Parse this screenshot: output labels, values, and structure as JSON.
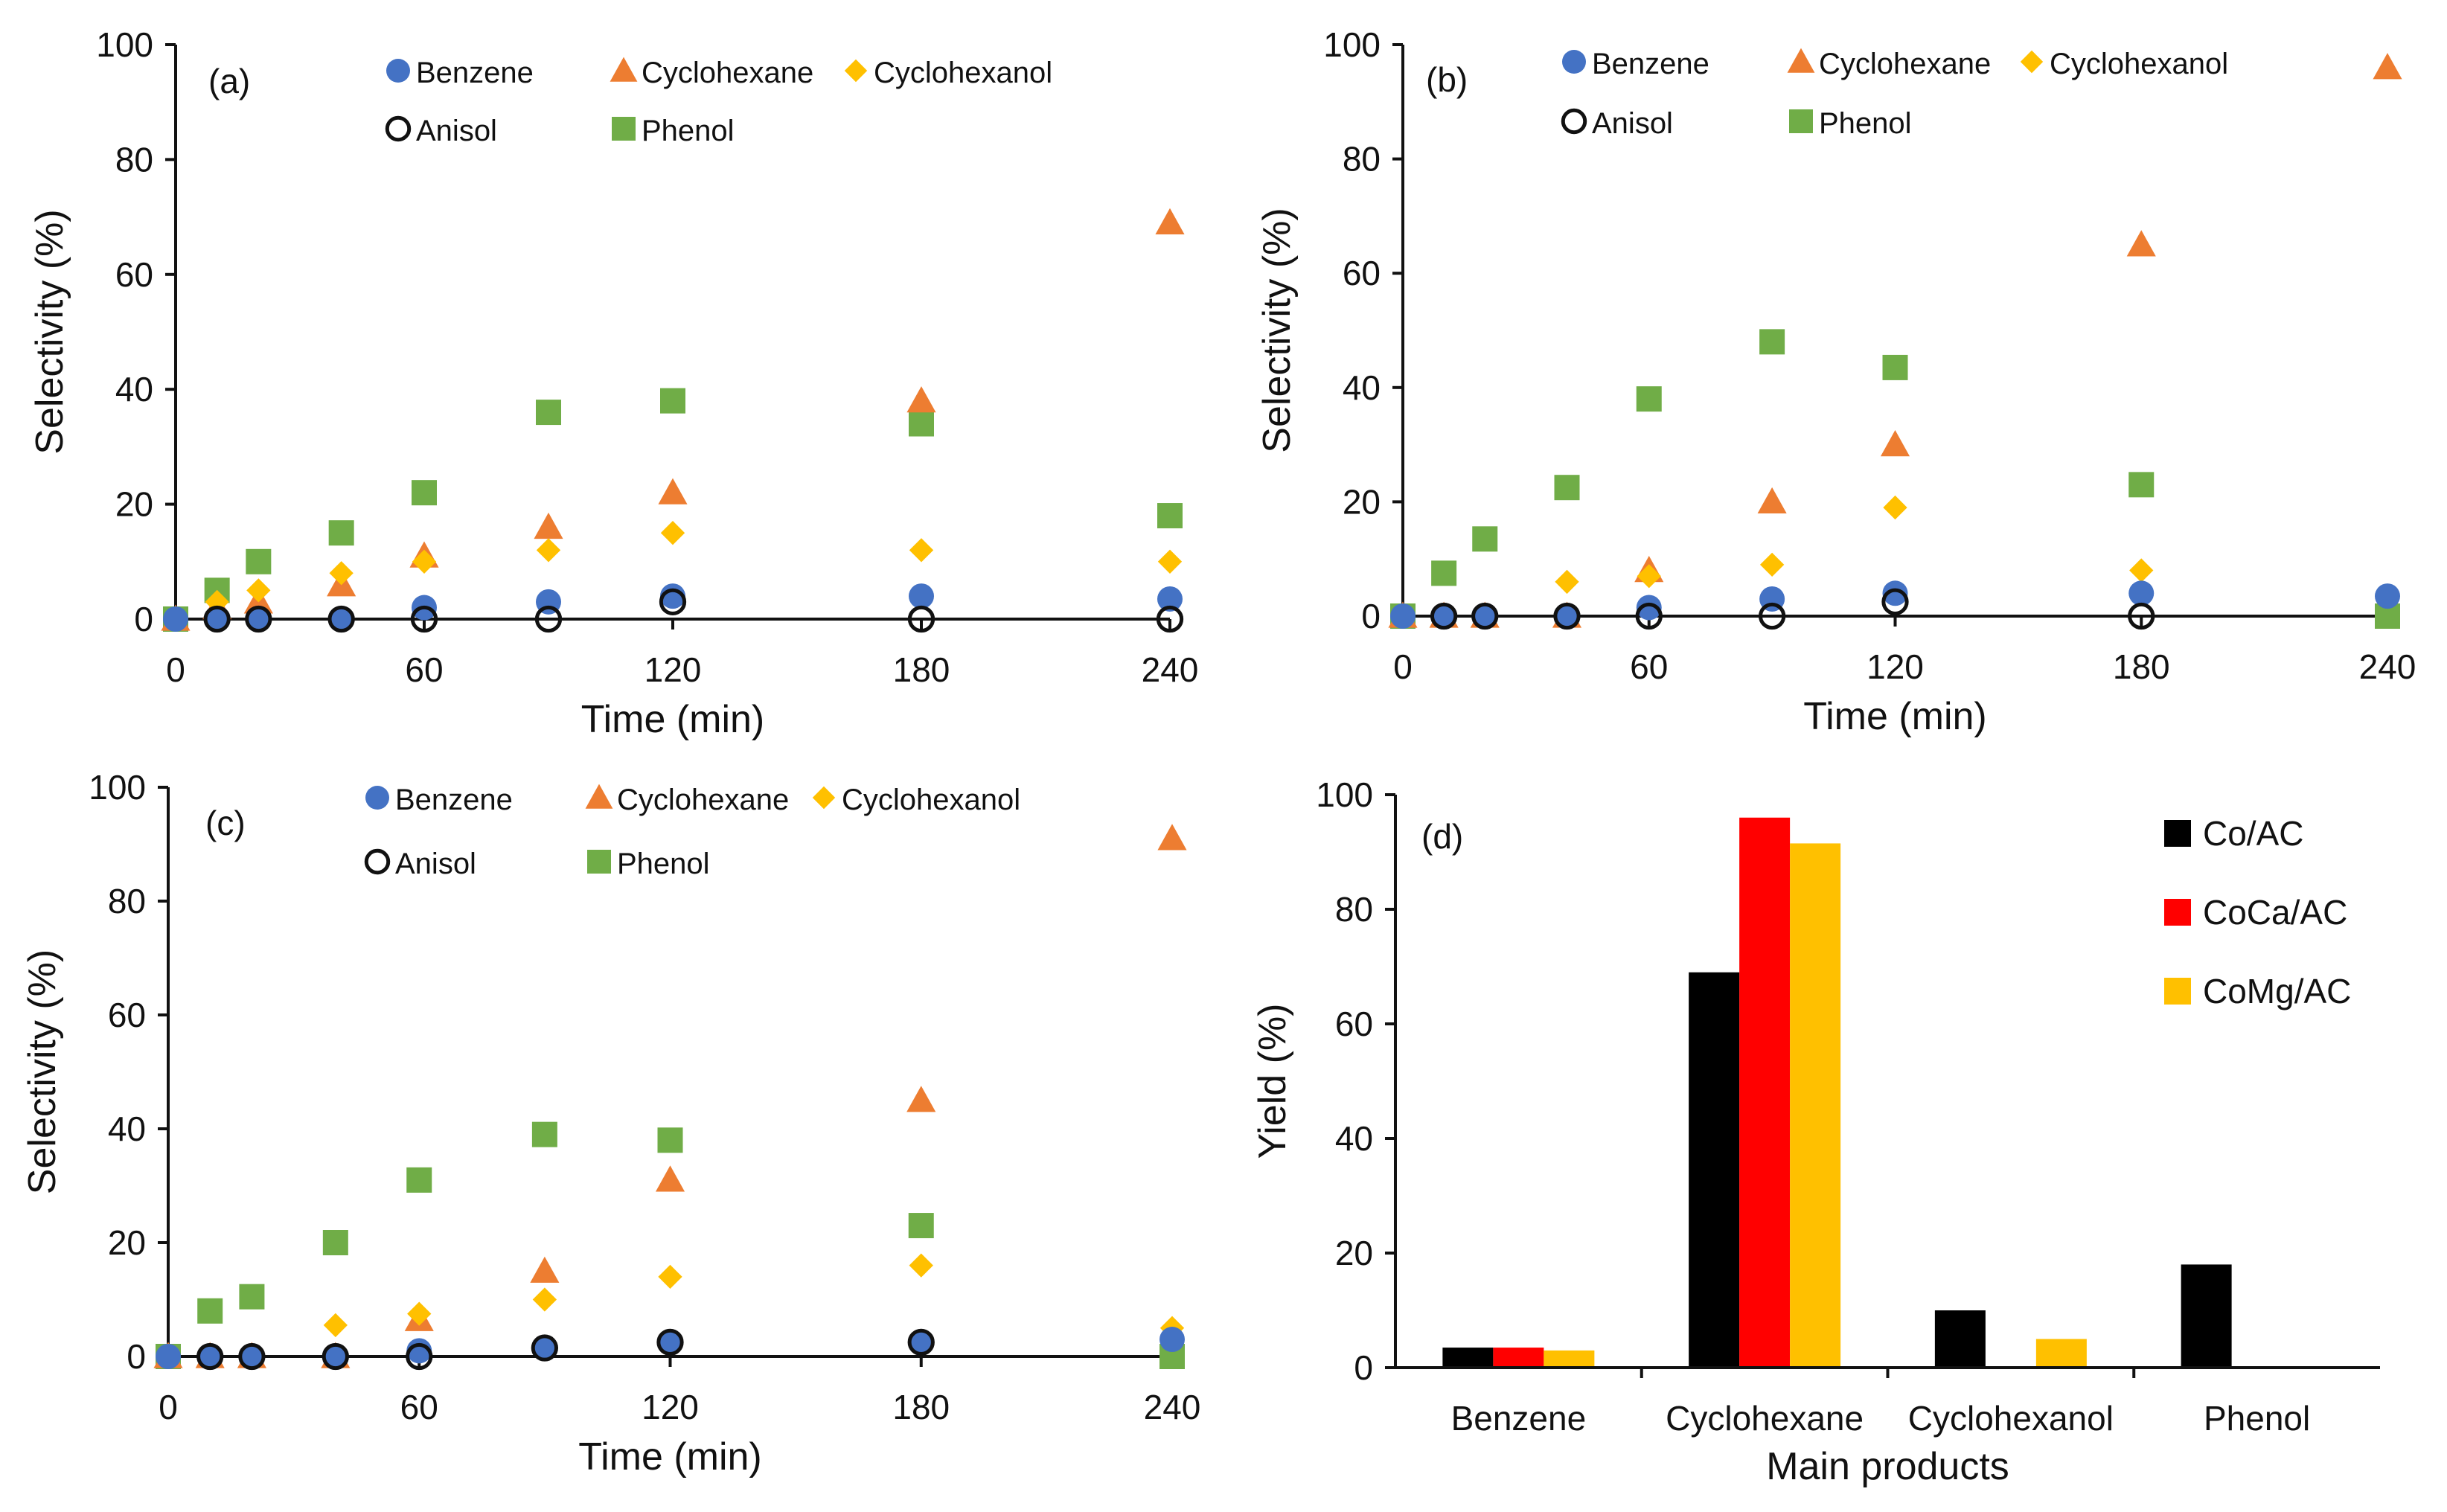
{
  "colors": {
    "benzene": "#4472C4",
    "cyclohexane": "#ED7D31",
    "cyclohexanol": "#FFC000",
    "phenol": "#70AD47",
    "anisol_stroke": "#111111",
    "co_ac": "#000000",
    "coca_ac": "#FF0000",
    "comg_ac": "#FFC000"
  },
  "chart_data": [
    {
      "panel": "(a)",
      "type": "scatter",
      "xlabel": "Time (min)",
      "ylabel": "Selectivity (%)",
      "xlim": [
        0,
        240
      ],
      "ylim": [
        0,
        100
      ],
      "xticks": [
        0,
        60,
        120,
        180,
        240
      ],
      "yticks": [
        0,
        20,
        40,
        60,
        80,
        100
      ],
      "legend_rows": [
        [
          "Benzene",
          "Cyclohexane",
          "Cyclohexanol"
        ],
        [
          "Anisol",
          "Phenol"
        ]
      ],
      "series": [
        {
          "name": "Phenol",
          "marker": "square",
          "x": [
            0,
            10,
            20,
            40,
            60,
            90,
            120,
            180,
            240
          ],
          "y": [
            0,
            5,
            10,
            15,
            22,
            36,
            38,
            34,
            18
          ]
        },
        {
          "name": "Cyclohexane",
          "marker": "triangle",
          "x": [
            0,
            10,
            20,
            40,
            60,
            90,
            120,
            180,
            240
          ],
          "y": [
            0,
            2,
            3,
            6,
            11,
            16,
            22,
            38,
            69
          ]
        },
        {
          "name": "Cyclohexanol",
          "marker": "diamond",
          "x": [
            0,
            10,
            20,
            40,
            60,
            90,
            120,
            180,
            240
          ],
          "y": [
            0,
            3,
            5,
            8,
            10,
            12,
            15,
            12,
            10
          ]
        },
        {
          "name": "Benzene",
          "marker": "circle",
          "x": [
            0,
            10,
            20,
            40,
            60,
            90,
            120,
            180,
            240
          ],
          "y": [
            0,
            0,
            0,
            0,
            2,
            3,
            4,
            4,
            3.5
          ]
        },
        {
          "name": "Anisol",
          "marker": "open-circle",
          "x": [
            10,
            20,
            40,
            60,
            90,
            120,
            180,
            240
          ],
          "y": [
            0,
            0,
            0,
            0,
            0,
            3,
            0,
            0
          ]
        }
      ]
    },
    {
      "panel": "(b)",
      "type": "scatter",
      "xlabel": "Time (min)",
      "ylabel": "Selectivity (%)",
      "xlim": [
        0,
        240
      ],
      "ylim": [
        0,
        100
      ],
      "xticks": [
        0,
        60,
        120,
        180,
        240
      ],
      "yticks": [
        0,
        20,
        40,
        60,
        80,
        100
      ],
      "legend_rows": [
        [
          "Benzene",
          "Cyclohexane",
          "Cyclohexanol"
        ],
        [
          "Anisol",
          "Phenol"
        ]
      ],
      "series": [
        {
          "name": "Phenol",
          "marker": "square",
          "x": [
            0,
            10,
            20,
            40,
            60,
            90,
            120,
            180,
            240
          ],
          "y": [
            0,
            7.5,
            13.5,
            22.5,
            38,
            48,
            43.5,
            23,
            0
          ]
        },
        {
          "name": "Cyclohexane",
          "marker": "triangle",
          "x": [
            0,
            10,
            20,
            40,
            60,
            90,
            120,
            180,
            240
          ],
          "y": [
            0,
            0,
            0,
            0,
            8,
            20,
            30,
            65,
            96
          ]
        },
        {
          "name": "Cyclohexanol",
          "marker": "diamond",
          "x": [
            0,
            10,
            20,
            40,
            60,
            90,
            120,
            180
          ],
          "y": [
            0,
            0,
            0,
            6,
            7,
            9,
            19,
            8
          ]
        },
        {
          "name": "Benzene",
          "marker": "circle",
          "x": [
            0,
            10,
            20,
            40,
            60,
            90,
            120,
            180,
            240
          ],
          "y": [
            0,
            0,
            0,
            0,
            1.5,
            3,
            4,
            4,
            3.5
          ]
        },
        {
          "name": "Anisol",
          "marker": "open-circle",
          "x": [
            10,
            20,
            40,
            60,
            90,
            120,
            180
          ],
          "y": [
            0,
            0,
            0,
            0,
            0,
            2.5,
            0
          ]
        }
      ]
    },
    {
      "panel": "(c)",
      "type": "scatter",
      "xlabel": "Time (min)",
      "ylabel": "Selectivity (%)",
      "xlim": [
        0,
        240
      ],
      "ylim": [
        0,
        100
      ],
      "xticks": [
        0,
        60,
        120,
        180,
        240
      ],
      "yticks": [
        0,
        20,
        40,
        60,
        80,
        100
      ],
      "legend_rows": [
        [
          "Benzene",
          "Cyclohexane",
          "Cyclohexanol"
        ],
        [
          "Anisol",
          "Phenol"
        ]
      ],
      "series": [
        {
          "name": "Phenol",
          "marker": "square",
          "x": [
            0,
            10,
            20,
            40,
            60,
            90,
            120,
            180,
            240
          ],
          "y": [
            0,
            8,
            10.5,
            20,
            31,
            39,
            38,
            23,
            0
          ]
        },
        {
          "name": "Cyclohexane",
          "marker": "triangle",
          "x": [
            0,
            10,
            20,
            40,
            60,
            90,
            120,
            180,
            240
          ],
          "y": [
            0,
            0,
            0,
            0,
            6.5,
            15,
            31,
            45,
            91
          ]
        },
        {
          "name": "Cyclohexanol",
          "marker": "diamond",
          "x": [
            0,
            10,
            20,
            40,
            60,
            90,
            120,
            180,
            240
          ],
          "y": [
            0,
            0,
            0,
            5.5,
            7.5,
            10,
            14,
            16,
            5
          ]
        },
        {
          "name": "Benzene",
          "marker": "circle",
          "x": [
            0,
            10,
            20,
            40,
            60,
            90,
            120,
            180,
            240
          ],
          "y": [
            0,
            0,
            0,
            0,
            1,
            1.5,
            2.5,
            2.5,
            3
          ]
        },
        {
          "name": "Anisol",
          "marker": "open-circle",
          "x": [
            10,
            20,
            40,
            60,
            90,
            120,
            180
          ],
          "y": [
            0,
            0,
            0,
            0,
            1.5,
            2.5,
            2.5
          ]
        }
      ]
    },
    {
      "panel": "(d)",
      "type": "bar",
      "xlabel": "Main products",
      "ylabel": "Yield (%)",
      "ylim": [
        0,
        100
      ],
      "yticks": [
        0,
        20,
        40,
        60,
        80,
        100
      ],
      "categories": [
        "Benzene",
        "Cyclohexane",
        "Cyclohexanol",
        "Phenol"
      ],
      "series": [
        {
          "name": "Co/AC",
          "values": [
            3.5,
            69,
            10,
            18
          ]
        },
        {
          "name": "CoCa/AC",
          "values": [
            3.5,
            96,
            0,
            0
          ]
        },
        {
          "name": "CoMg/AC",
          "values": [
            3,
            91.5,
            5,
            0
          ]
        }
      ]
    }
  ]
}
